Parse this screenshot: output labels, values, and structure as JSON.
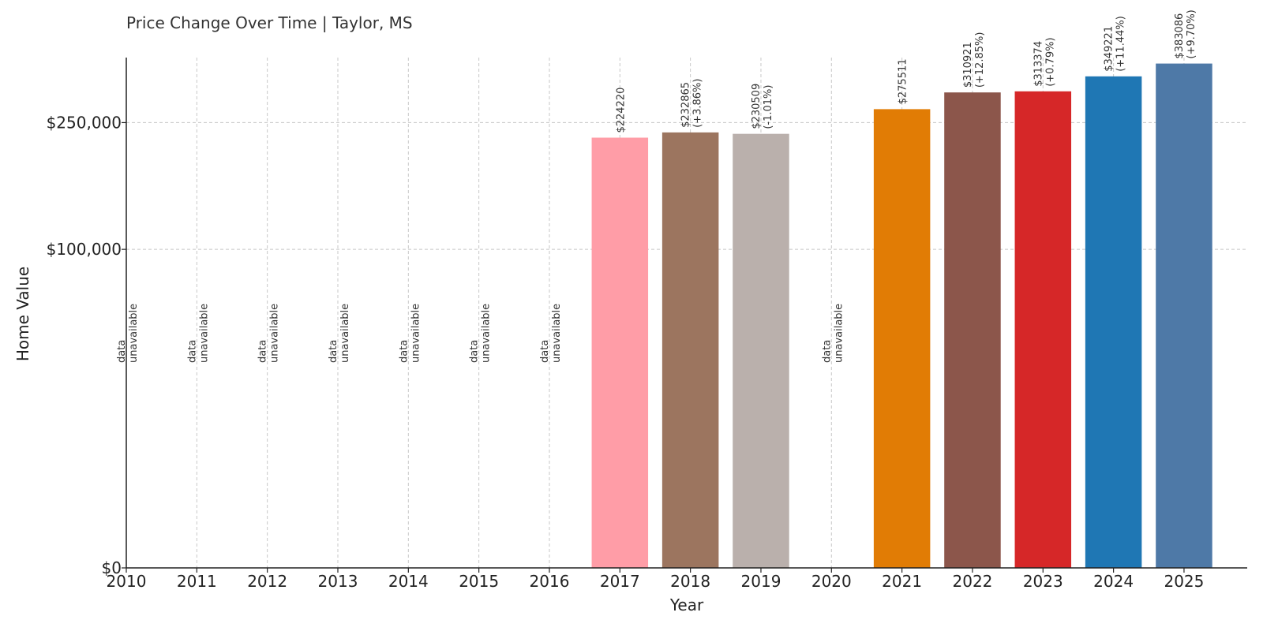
{
  "chart_data": {
    "type": "bar",
    "title": "Price Change Over Time | Taylor, MS",
    "xlabel": "Year",
    "ylabel": "Home Value",
    "ylim": [
      0,
      400000
    ],
    "y_scale": "symlog",
    "grid": true,
    "yticks": [
      {
        "value": 0,
        "label": "$0"
      },
      {
        "value": 100000,
        "label": "$100,000"
      },
      {
        "value": 250000,
        "label": "$250,000"
      }
    ],
    "categories": [
      "2010",
      "2011",
      "2012",
      "2013",
      "2014",
      "2015",
      "2016",
      "2017",
      "2018",
      "2019",
      "2020",
      "2021",
      "2022",
      "2023",
      "2024",
      "2025"
    ],
    "unavailable_text": [
      "data",
      "unavailable"
    ],
    "bars": [
      {
        "year": "2010",
        "value": null,
        "label": "",
        "change": "",
        "color": ""
      },
      {
        "year": "2011",
        "value": null,
        "label": "",
        "change": "",
        "color": ""
      },
      {
        "year": "2012",
        "value": null,
        "label": "",
        "change": "",
        "color": ""
      },
      {
        "year": "2013",
        "value": null,
        "label": "",
        "change": "",
        "color": ""
      },
      {
        "year": "2014",
        "value": null,
        "label": "",
        "change": "",
        "color": ""
      },
      {
        "year": "2015",
        "value": null,
        "label": "",
        "change": "",
        "color": ""
      },
      {
        "year": "2016",
        "value": null,
        "label": "",
        "change": "",
        "color": ""
      },
      {
        "year": "2017",
        "value": 224220,
        "label": "$224220",
        "change": "",
        "color": "#ff9da7"
      },
      {
        "year": "2018",
        "value": 232865,
        "label": "$232865",
        "change": "(+3.86%)",
        "color": "#9c755f"
      },
      {
        "year": "2019",
        "value": 230509,
        "label": "$230509",
        "change": "(-1.01%)",
        "color": "#bab0ac"
      },
      {
        "year": "2020",
        "value": null,
        "label": "",
        "change": "",
        "color": ""
      },
      {
        "year": "2021",
        "value": 275511,
        "label": "$275511",
        "change": "",
        "color": "#e17c05"
      },
      {
        "year": "2022",
        "value": 310921,
        "label": "$310921",
        "change": "(+12.85%)",
        "color": "#8c564b"
      },
      {
        "year": "2023",
        "value": 313374,
        "label": "$313374",
        "change": "(+0.79%)",
        "color": "#d62728"
      },
      {
        "year": "2024",
        "value": 349221,
        "label": "$349221",
        "change": "(+11.44%)",
        "color": "#1f77b4"
      },
      {
        "year": "2025",
        "value": 383086,
        "label": "$383086",
        "change": "(+9.70%)",
        "color": "#4e79a7"
      }
    ]
  }
}
